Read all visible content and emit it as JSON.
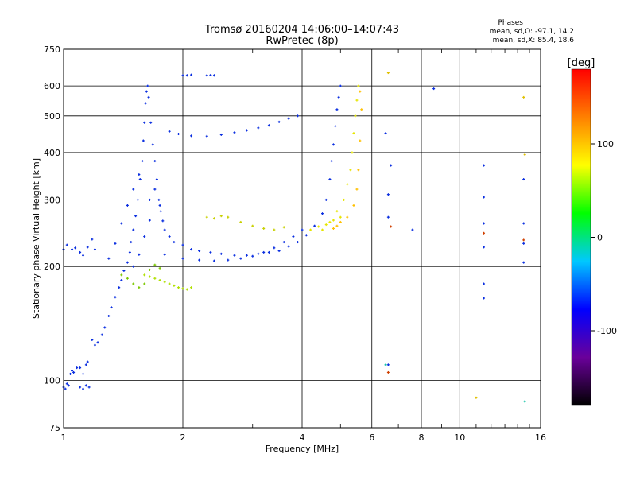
{
  "chart_data": {
    "type": "scatter",
    "title": "Tromsø 20160204 14:06:00–14:07:43",
    "subtitle": "RwPretec (8p)",
    "stats": {
      "heading": "Phases",
      "line1": "mean, sd,O: -97.1, 14.2",
      "line2": "mean, sd,X:  85.4, 18.6"
    },
    "xlabel": "Frequency [MHz]",
    "ylabel": "Stationary phase Virtual Height [km]",
    "xscale": "log",
    "yscale": "log",
    "xlim": [
      1,
      16
    ],
    "ylim": [
      75,
      750
    ],
    "x_ticks": [
      {
        "value": 1,
        "label": "1"
      },
      {
        "value": 2,
        "label": "2"
      },
      {
        "value": 4,
        "label": "4"
      },
      {
        "value": 6,
        "label": "6"
      },
      {
        "value": 8,
        "label": "8"
      },
      {
        "value": 10,
        "label": "10"
      },
      {
        "value": 16,
        "label": "16"
      }
    ],
    "x_gridlines": [
      2,
      4,
      6,
      8,
      10
    ],
    "x_minor_ticks": [
      3,
      5,
      7,
      9,
      11,
      12,
      13,
      14,
      15
    ],
    "y_ticks": [
      {
        "value": 75,
        "label": "75"
      },
      {
        "value": 100,
        "label": "100"
      },
      {
        "value": 200,
        "label": "200"
      },
      {
        "value": 300,
        "label": "300"
      },
      {
        "value": 400,
        "label": "400"
      },
      {
        "value": 500,
        "label": "500"
      },
      {
        "value": 600,
        "label": "600"
      },
      {
        "value": 750,
        "label": "750"
      }
    ],
    "y_gridlines": [
      100,
      200,
      300,
      400,
      500,
      600
    ],
    "grid": true,
    "colorbar": {
      "label": "[deg]",
      "range": [
        -180,
        180
      ],
      "ticks": [
        {
          "value": 100,
          "label": "100"
        },
        {
          "value": 0,
          "label": "0"
        },
        {
          "value": -100,
          "label": "-100"
        }
      ],
      "colormap": [
        "#000000",
        "#6a009a",
        "#0000ff",
        "#00c8ff",
        "#00ff00",
        "#ffff00",
        "#ff8000",
        "#ff0000"
      ]
    },
    "series": [
      {
        "color": "#0a2ee0",
        "points": [
          [
            1.0,
            222
          ],
          [
            1.02,
            228
          ],
          [
            1.05,
            222
          ],
          [
            1.07,
            224
          ],
          [
            1.1,
            218
          ],
          [
            1.12,
            214
          ],
          [
            1.15,
            225
          ],
          [
            1.18,
            236
          ],
          [
            1.2,
            222
          ]
        ]
      },
      {
        "color": "#0a2ee0",
        "points": [
          [
            1.0,
            96
          ],
          [
            1.02,
            98
          ],
          [
            1.04,
            104
          ],
          [
            1.05,
            106
          ],
          [
            1.06,
            105
          ],
          [
            1.08,
            108
          ],
          [
            1.1,
            108
          ],
          [
            1.12,
            104
          ],
          [
            1.14,
            110
          ],
          [
            1.15,
            112
          ]
        ]
      },
      {
        "color": "#0a2ee0",
        "points": [
          [
            1.1,
            96
          ],
          [
            1.12,
            95
          ],
          [
            1.14,
            97
          ],
          [
            1.16,
            96
          ],
          [
            1.01,
            95
          ],
          [
            1.03,
            97
          ]
        ]
      },
      {
        "color": "#0a2ee0",
        "points": [
          [
            1.18,
            128
          ],
          [
            1.2,
            124
          ],
          [
            1.22,
            126
          ],
          [
            1.25,
            132
          ],
          [
            1.27,
            138
          ],
          [
            1.3,
            148
          ],
          [
            1.32,
            156
          ],
          [
            1.35,
            166
          ],
          [
            1.38,
            176
          ],
          [
            1.4,
            184
          ],
          [
            1.42,
            195
          ],
          [
            1.45,
            205
          ],
          [
            1.47,
            218
          ],
          [
            1.48,
            232
          ],
          [
            1.5,
            250
          ],
          [
            1.52,
            272
          ],
          [
            1.54,
            300
          ],
          [
            1.56,
            340
          ],
          [
            1.58,
            380
          ],
          [
            1.59,
            430
          ],
          [
            1.6,
            480
          ],
          [
            1.61,
            540
          ],
          [
            1.62,
            580
          ],
          [
            1.63,
            600
          ]
        ]
      },
      {
        "color": "#0a2ee0",
        "points": [
          [
            1.64,
            560
          ],
          [
            1.66,
            480
          ],
          [
            1.68,
            420
          ],
          [
            1.7,
            380
          ],
          [
            1.72,
            340
          ],
          [
            1.74,
            300
          ],
          [
            1.76,
            280
          ],
          [
            1.78,
            264
          ],
          [
            1.8,
            250
          ],
          [
            1.85,
            240
          ],
          [
            1.9,
            232
          ],
          [
            2.0,
            228
          ],
          [
            2.1,
            222
          ],
          [
            2.2,
            220
          ],
          [
            2.35,
            218
          ],
          [
            2.5,
            216
          ],
          [
            2.7,
            214
          ],
          [
            2.9,
            214
          ],
          [
            3.1,
            216
          ],
          [
            3.3,
            218
          ],
          [
            3.5,
            220
          ],
          [
            3.7,
            226
          ],
          [
            3.9,
            232
          ],
          [
            4.1,
            242
          ],
          [
            4.3,
            256
          ],
          [
            4.5,
            276
          ],
          [
            4.6,
            300
          ],
          [
            4.7,
            340
          ],
          [
            4.75,
            380
          ],
          [
            4.8,
            420
          ],
          [
            4.85,
            470
          ],
          [
            4.9,
            520
          ],
          [
            4.95,
            560
          ],
          [
            5.0,
            600
          ]
        ]
      },
      {
        "color": "#0a2ee0",
        "points": [
          [
            1.8,
            215
          ],
          [
            2.0,
            210
          ],
          [
            2.2,
            208
          ],
          [
            2.4,
            207
          ],
          [
            2.6,
            208
          ],
          [
            2.8,
            210
          ],
          [
            3.0,
            213
          ],
          [
            3.2,
            218
          ],
          [
            3.4,
            224
          ],
          [
            3.6,
            232
          ],
          [
            3.8,
            240
          ],
          [
            4.0,
            250
          ]
        ]
      },
      {
        "color": "#0a2ee0",
        "points": [
          [
            1.85,
            455
          ],
          [
            1.95,
            448
          ],
          [
            2.1,
            443
          ],
          [
            2.3,
            442
          ],
          [
            2.5,
            446
          ],
          [
            2.7,
            452
          ],
          [
            2.9,
            458
          ],
          [
            3.1,
            465
          ],
          [
            3.3,
            472
          ],
          [
            3.5,
            482
          ],
          [
            3.7,
            492
          ],
          [
            3.9,
            500
          ]
        ]
      },
      {
        "color": "#0a2ee0",
        "points": [
          [
            2.0,
            640
          ],
          [
            2.05,
            640
          ],
          [
            2.1,
            642
          ],
          [
            2.3,
            640
          ],
          [
            2.35,
            641
          ],
          [
            2.4,
            640
          ]
        ]
      },
      {
        "color": "#0a2ee0",
        "points": [
          [
            1.3,
            210
          ],
          [
            1.35,
            230
          ],
          [
            1.4,
            260
          ],
          [
            1.45,
            290
          ],
          [
            1.5,
            320
          ],
          [
            1.55,
            350
          ],
          [
            1.65,
            300
          ],
          [
            1.7,
            320
          ],
          [
            1.75,
            290
          ],
          [
            1.5,
            200
          ],
          [
            1.55,
            215
          ],
          [
            1.6,
            240
          ],
          [
            1.65,
            265
          ]
        ]
      },
      {
        "color": "#e6e600",
        "points": [
          [
            4.5,
            250
          ],
          [
            4.7,
            262
          ],
          [
            4.9,
            280
          ],
          [
            5.1,
            300
          ],
          [
            5.2,
            330
          ],
          [
            5.3,
            360
          ],
          [
            5.35,
            400
          ],
          [
            5.4,
            450
          ],
          [
            5.45,
            500
          ],
          [
            5.5,
            550
          ],
          [
            5.55,
            600
          ],
          [
            4.2,
            250
          ],
          [
            4.4,
            255
          ],
          [
            4.6,
            258
          ],
          [
            4.8,
            265
          ],
          [
            5.0,
            270
          ]
        ]
      },
      {
        "color": "#ffc000",
        "points": [
          [
            5.6,
            580
          ],
          [
            5.65,
            520
          ],
          [
            5.6,
            430
          ],
          [
            5.55,
            360
          ],
          [
            5.5,
            320
          ],
          [
            5.4,
            290
          ],
          [
            5.2,
            270
          ],
          [
            5.0,
            262
          ],
          [
            4.9,
            256
          ],
          [
            4.8,
            252
          ]
        ]
      },
      {
        "color": "#b0e000",
        "points": [
          [
            1.6,
            190
          ],
          [
            1.65,
            188
          ],
          [
            1.7,
            186
          ],
          [
            1.75,
            184
          ],
          [
            1.8,
            182
          ],
          [
            1.85,
            180
          ],
          [
            1.9,
            178
          ],
          [
            1.95,
            176
          ],
          [
            2.0,
            175
          ],
          [
            2.05,
            174
          ],
          [
            2.1,
            176
          ]
        ]
      },
      {
        "color": "#7cc800",
        "points": [
          [
            1.4,
            190
          ],
          [
            1.45,
            186
          ],
          [
            1.5,
            180
          ],
          [
            1.55,
            176
          ],
          [
            1.6,
            180
          ],
          [
            1.65,
            196
          ],
          [
            1.7,
            202
          ],
          [
            1.75,
            198
          ]
        ]
      },
      {
        "color": "#c8d000",
        "points": [
          [
            2.3,
            270
          ],
          [
            2.4,
            268
          ],
          [
            2.5,
            272
          ],
          [
            2.6,
            270
          ],
          [
            2.8,
            262
          ],
          [
            3.0,
            256
          ],
          [
            3.2,
            252
          ],
          [
            3.4,
            250
          ],
          [
            3.6,
            254
          ]
        ]
      },
      {
        "color": "#0a2ee0",
        "points": [
          [
            11.5,
            370
          ],
          [
            11.5,
            305
          ],
          [
            11.5,
            260
          ],
          [
            11.5,
            225
          ],
          [
            11.5,
            180
          ],
          [
            11.5,
            165
          ],
          [
            14.5,
            340
          ],
          [
            14.5,
            260
          ],
          [
            14.5,
            230
          ],
          [
            14.5,
            205
          ],
          [
            6.6,
            310
          ],
          [
            6.6,
            270
          ],
          [
            6.6,
            110
          ],
          [
            6.5,
            450
          ],
          [
            6.7,
            370
          ],
          [
            7.6,
            250
          ],
          [
            8.6,
            590
          ]
        ]
      },
      {
        "color": "#e0c000",
        "points": [
          [
            6.6,
            650
          ],
          [
            14.5,
            560
          ],
          [
            11.0,
            90
          ],
          [
            14.6,
            395
          ]
        ]
      },
      {
        "color": "#d04000",
        "points": [
          [
            6.7,
            255
          ],
          [
            11.5,
            245
          ],
          [
            14.5,
            235
          ],
          [
            6.6,
            105
          ]
        ]
      },
      {
        "color": "#00c0a0",
        "points": [
          [
            14.6,
            88
          ],
          [
            6.5,
            110
          ]
        ]
      }
    ]
  }
}
